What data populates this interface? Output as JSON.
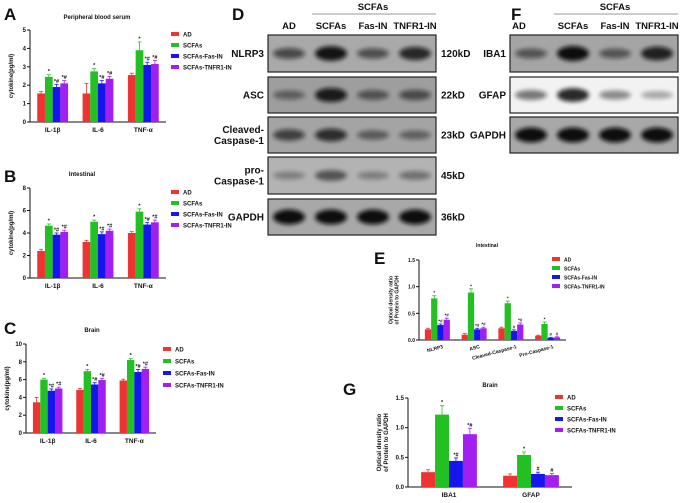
{
  "colors": {
    "AD": "#ee3333",
    "SCFAs": "#22c022",
    "SCFAs-Fas-IN": "#1515ee",
    "SCFAs-TNFR1-IN": "#a21ff0"
  },
  "legend": [
    "AD",
    "SCFAs",
    "SCFAs-Fas-IN",
    "SCFAs-TNFR1-IN"
  ],
  "chart_data": [
    {
      "panel": "A",
      "type": "bar",
      "title": "Peripheral blood serum",
      "ylabel": "cytokine(pg/ml)",
      "categories": [
        "IL-1β",
        "IL-6",
        "TNF-α"
      ],
      "ylim": [
        0,
        5
      ],
      "yticks": [
        0,
        1,
        2,
        3,
        4,
        5
      ],
      "series": [
        {
          "name": "AD",
          "values": [
            1.55,
            1.55,
            2.55
          ],
          "errors": [
            0.1,
            0.55,
            0.1
          ],
          "marks": [
            "",
            "",
            ""
          ]
        },
        {
          "name": "SCFAs",
          "values": [
            2.45,
            2.75,
            3.9
          ],
          "errors": [
            0.12,
            0.15,
            0.45
          ],
          "marks": [
            "*",
            "*",
            "*"
          ]
        },
        {
          "name": "SCFAs-Fas-IN",
          "values": [
            1.9,
            2.1,
            3.1
          ],
          "errors": [
            0.15,
            0.15,
            0.15
          ],
          "marks": [
            "*#",
            "*#",
            "*#"
          ]
        },
        {
          "name": "SCFAs-TNFR1-IN",
          "values": [
            2.1,
            2.35,
            3.15
          ],
          "errors": [
            0.15,
            0.12,
            0.2
          ],
          "marks": [
            "*#",
            "*#",
            "*#"
          ]
        }
      ]
    },
    {
      "panel": "B",
      "type": "bar",
      "title": "Intestinal",
      "ylabel": "cytokine(pg/ml)",
      "categories": [
        "IL-1β",
        "IL-6",
        "TNF-α"
      ],
      "ylim": [
        0,
        8
      ],
      "yticks": [
        0,
        2,
        4,
        6,
        8
      ],
      "series": [
        {
          "name": "AD",
          "values": [
            2.4,
            3.2,
            4.0
          ],
          "errors": [
            0.15,
            0.15,
            0.12
          ],
          "marks": [
            "",
            "",
            ""
          ]
        },
        {
          "name": "SCFAs",
          "values": [
            4.65,
            5.0,
            5.9
          ],
          "errors": [
            0.15,
            0.15,
            0.25
          ],
          "marks": [
            "*",
            "*",
            "*"
          ]
        },
        {
          "name": "SCFAs-Fas-IN",
          "values": [
            3.85,
            3.9,
            4.75
          ],
          "errors": [
            0.15,
            0.2,
            0.2
          ],
          "marks": [
            "*#",
            "*#",
            "*#"
          ]
        },
        {
          "name": "SCFAs-TNFR1-IN",
          "values": [
            4.1,
            4.2,
            4.95
          ],
          "errors": [
            0.15,
            0.15,
            0.2
          ],
          "marks": [
            "*#",
            "*#",
            "*#"
          ]
        }
      ]
    },
    {
      "panel": "C",
      "type": "bar",
      "title": "Brain",
      "ylabel": "cytokine(pg/ml)",
      "categories": [
        "IL-1β",
        "IL-6",
        "TNF-α"
      ],
      "ylim": [
        0,
        10
      ],
      "yticks": [
        0,
        2,
        4,
        6,
        8,
        10
      ],
      "series": [
        {
          "name": "AD",
          "values": [
            3.45,
            4.85,
            5.9
          ],
          "errors": [
            0.55,
            0.15,
            0.15
          ],
          "marks": [
            "",
            "",
            ""
          ]
        },
        {
          "name": "SCFAs",
          "values": [
            6.0,
            6.95,
            8.2
          ],
          "errors": [
            0.15,
            0.2,
            0.15
          ],
          "marks": [
            "*",
            "*",
            "*"
          ]
        },
        {
          "name": "SCFAs-Fas-IN",
          "values": [
            4.75,
            5.45,
            6.85
          ],
          "errors": [
            0.2,
            0.2,
            0.3
          ],
          "marks": [
            "*#",
            "*#",
            "*#"
          ]
        },
        {
          "name": "SCFAs-TNFR1-IN",
          "values": [
            5.0,
            5.95,
            7.2
          ],
          "errors": [
            0.15,
            0.2,
            0.2
          ],
          "marks": [
            "*#",
            "*#",
            "*#"
          ]
        }
      ]
    },
    {
      "panel": "E",
      "type": "bar",
      "title": "Intestinal",
      "ylabel": "Optical density ratio of Protein to GAPDH",
      "categories": [
        "NLRP3",
        "ASC",
        "Cleaved-Caspase-1",
        "Pro-Caspase-1"
      ],
      "ylim": [
        0,
        1.5
      ],
      "yticks": [
        0.0,
        0.5,
        1.0,
        1.5
      ],
      "series": [
        {
          "name": "AD",
          "values": [
            0.2,
            0.1,
            0.22,
            0.08
          ],
          "errors": [
            0.02,
            0.02,
            0.02,
            0.01
          ],
          "marks": [
            "",
            "",
            "",
            ""
          ]
        },
        {
          "name": "SCFAs",
          "values": [
            0.78,
            0.89,
            0.69,
            0.3
          ],
          "errors": [
            0.05,
            0.07,
            0.04,
            0.04
          ],
          "marks": [
            "*",
            "*",
            "*",
            "*"
          ]
        },
        {
          "name": "SCFAs-Fas-IN",
          "values": [
            0.28,
            0.2,
            0.17,
            0.04
          ],
          "errors": [
            0.02,
            0.02,
            0.02,
            0.01
          ],
          "marks": [
            "*#",
            "*#",
            "#",
            "#"
          ]
        },
        {
          "name": "SCFAs-TNFR1-IN",
          "values": [
            0.38,
            0.22,
            0.29,
            0.05
          ],
          "errors": [
            0.03,
            0.02,
            0.03,
            0.01
          ],
          "marks": [
            "*#",
            "*#",
            "*#",
            "#"
          ]
        }
      ]
    },
    {
      "panel": "G",
      "type": "bar",
      "title": "Brain",
      "ylabel": "Optical density ratio of Protein to GAPDH",
      "categories": [
        "IBA1",
        "GFAP"
      ],
      "ylim": [
        0,
        1.5
      ],
      "yticks": [
        0.0,
        0.5,
        1.0,
        1.5
      ],
      "series": [
        {
          "name": "AD",
          "values": [
            0.25,
            0.19
          ],
          "errors": [
            0.04,
            0.03
          ],
          "marks": [
            "",
            ""
          ]
        },
        {
          "name": "SCFAs",
          "values": [
            1.22,
            0.54
          ],
          "errors": [
            0.15,
            0.05
          ],
          "marks": [
            "*",
            "*"
          ]
        },
        {
          "name": "SCFAs-Fas-IN",
          "values": [
            0.44,
            0.22
          ],
          "errors": [
            0.05,
            0.03
          ],
          "marks": [
            "*#",
            "#"
          ]
        },
        {
          "name": "SCFAs-TNFR1-IN",
          "values": [
            0.89,
            0.2
          ],
          "errors": [
            0.1,
            0.03
          ],
          "marks": [
            "*#",
            "#"
          ]
        }
      ]
    }
  ],
  "blots": [
    {
      "panel": "D",
      "group_label": "SCFAs",
      "lanes": [
        "AD",
        "SCFAs",
        "Fas-IN",
        "TNFR1-IN"
      ],
      "rows": [
        {
          "protein": "NLRP3",
          "size": "120kD",
          "band_intensity": [
            0.55,
            0.95,
            0.5,
            0.8
          ],
          "background": "#a9a9a9"
        },
        {
          "protein": "ASC",
          "size": "22kD",
          "band_intensity": [
            0.35,
            0.9,
            0.45,
            0.5
          ],
          "background": "#9e9e9e"
        },
        {
          "protein": "Cleaved-\nCaspase-1",
          "size": "23kD",
          "band_intensity": [
            0.6,
            0.75,
            0.4,
            0.35
          ],
          "background": "#a4a4a4"
        },
        {
          "protein": "pro-\nCaspase-1",
          "size": "45kD",
          "band_intensity": [
            0.2,
            0.5,
            0.2,
            0.3
          ],
          "background": "#b3b3b3"
        },
        {
          "protein": "GAPDH",
          "size": "36kD",
          "band_intensity": [
            1,
            1,
            1,
            1
          ],
          "background": "#a8a8a8"
        }
      ]
    },
    {
      "panel": "F",
      "group_label": "SCFAs",
      "lanes": [
        "AD",
        "SCFAs",
        "Fas-IN",
        "TNFR1-IN"
      ],
      "rows": [
        {
          "protein": "IBA1",
          "size": "",
          "band_intensity": [
            0.45,
            1,
            0.45,
            0.85
          ],
          "background": "#a5a5a5"
        },
        {
          "protein": "GFAP",
          "size": "",
          "band_intensity": [
            0.45,
            0.85,
            0.35,
            0.2
          ],
          "background": "#f2f2f2"
        },
        {
          "protein": "GAPDH",
          "size": "",
          "band_intensity": [
            1,
            1,
            1,
            1
          ],
          "background": "#a8a8a8"
        }
      ]
    }
  ]
}
